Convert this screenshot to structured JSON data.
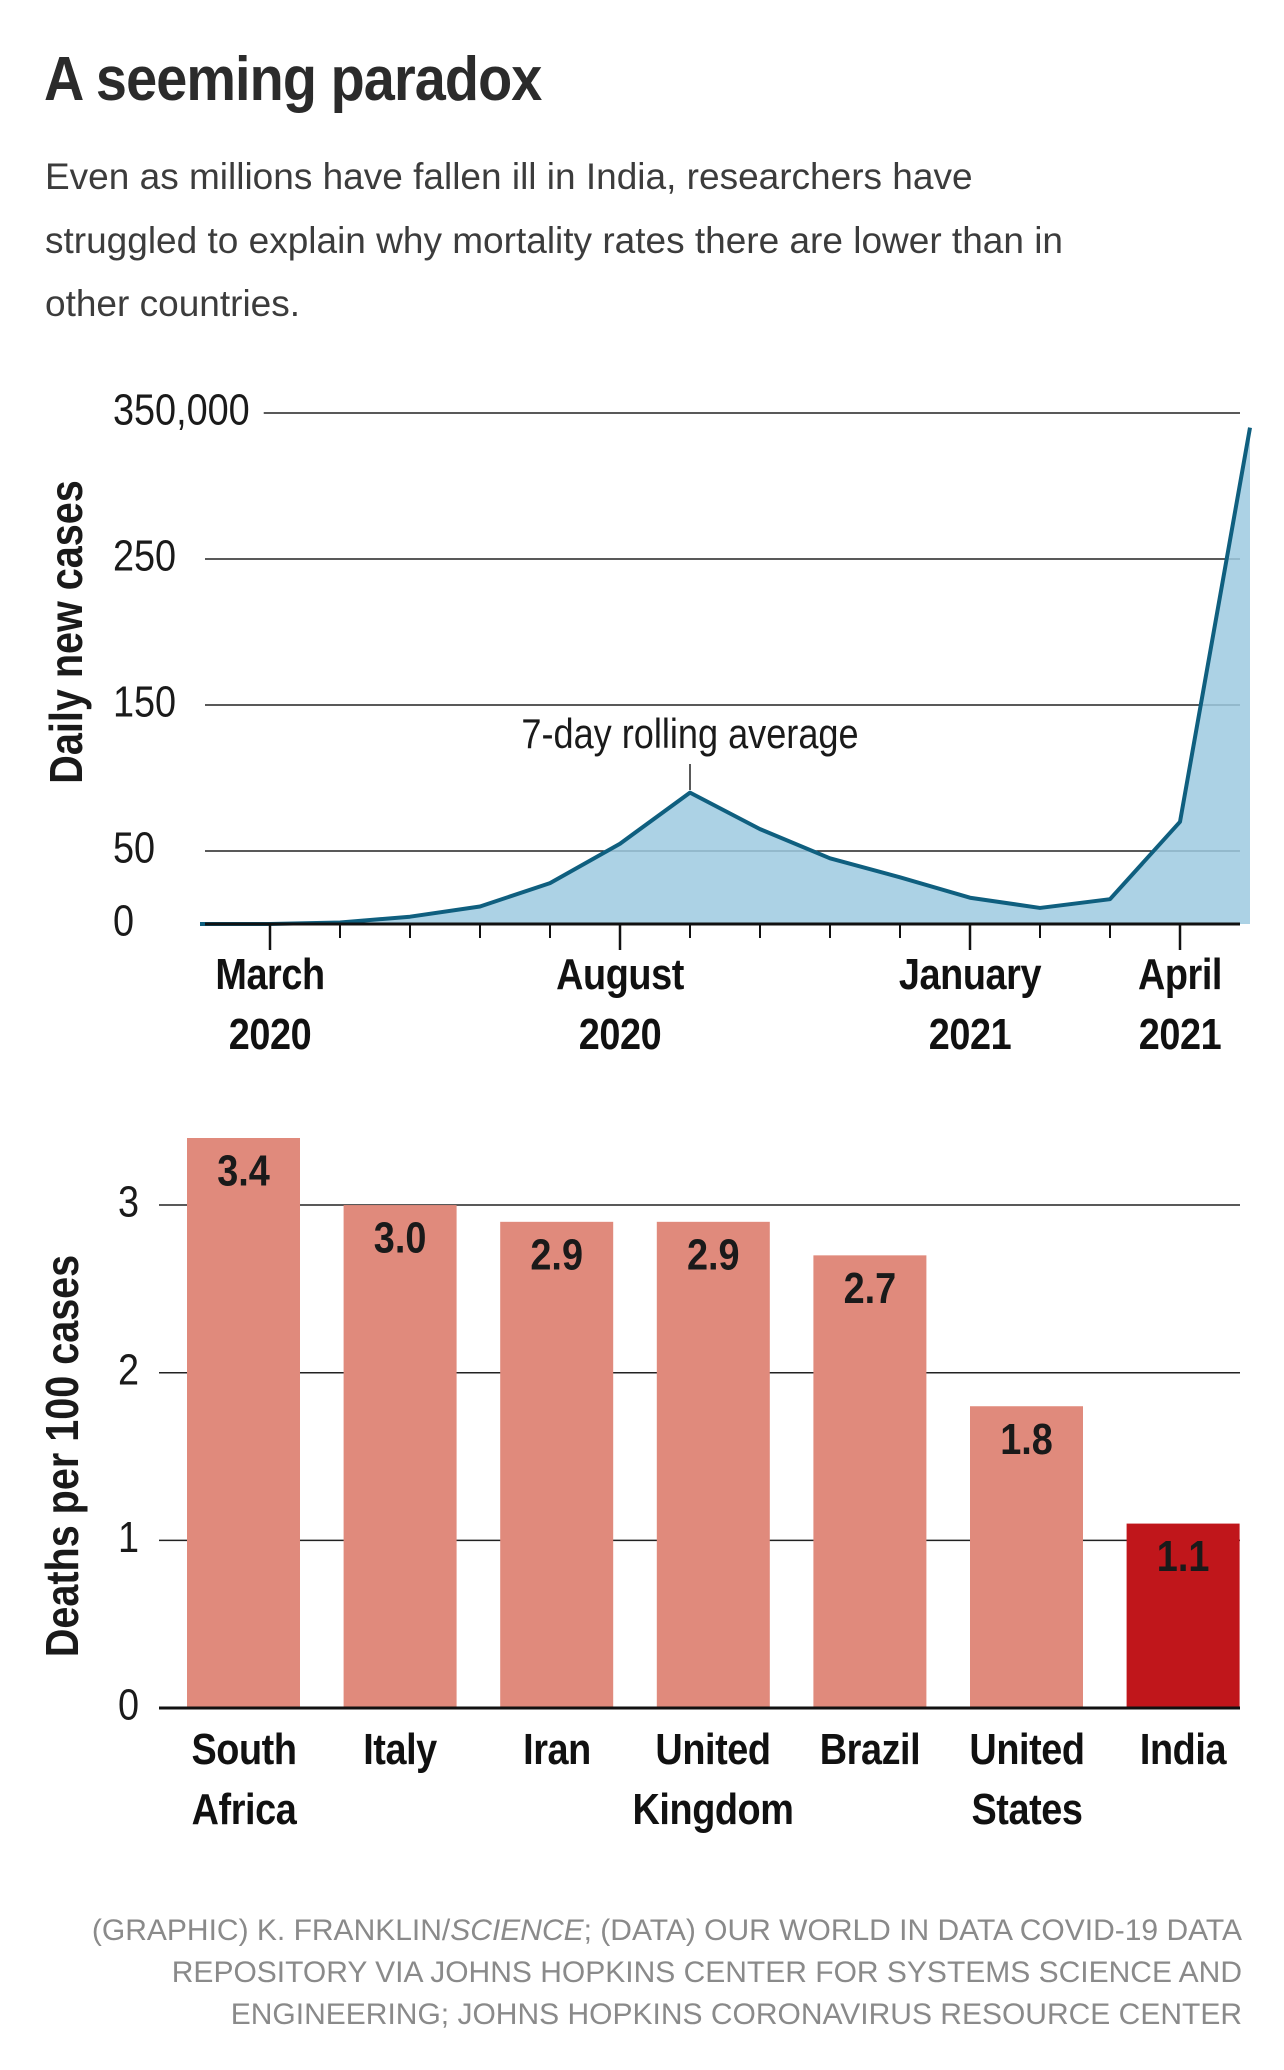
{
  "title": "A seeming paradox",
  "subtitle": [
    "Even as millions have fallen ill in India, researchers have",
    "struggled to explain why mortality rates there are lower than in",
    "other countries."
  ],
  "source": [
    "(GRAPHIC) K. FRANKLIN/",
    "SCIENCE",
    "; (DATA) OUR WORLD IN DATA COVID-19 DATA REPOSITORY VIA JOHNS HOPKINS CENTER FOR SYSTEMS SCIENCE AND ENGINEERING; JOHNS HOPKINS CORONAVIRUS RESOURCE CENTER"
  ],
  "chart_data": [
    {
      "type": "line",
      "y_label": "Daily new cases",
      "x": [
        "2020-02",
        "2020-03",
        "2020-04",
        "2020-05",
        "2020-06",
        "2020-07",
        "2020-08",
        "2020-09",
        "2020-10",
        "2020-11",
        "2020-12",
        "2021-01",
        "2021-02",
        "2021-03",
        "2021-04",
        "2021-05"
      ],
      "series": [
        {
          "color": "#0f5f7f",
          "fill": "#9ecae1",
          "values": [
            0,
            0,
            1000,
            5000,
            12000,
            28000,
            55000,
            90000,
            65000,
            45000,
            32000,
            18000,
            11000,
            17000,
            70000,
            340000
          ]
        }
      ],
      "annotation": {
        "text": "7-day rolling average",
        "x": "2020-09"
      },
      "xlim": [
        "2020-02",
        "2021-05"
      ],
      "xticks": [
        {
          "value": "2020-03",
          "label": "March\n2020"
        },
        {
          "value": "2020-08",
          "label": "August\n2020"
        },
        {
          "value": "2021-01",
          "label": "January\n2021"
        },
        {
          "value": "2021-04",
          "label": "April\n2021"
        }
      ],
      "minor_xticks": [
        "2020-04",
        "2020-05",
        "2020-06",
        "2020-07",
        "2020-09",
        "2020-10",
        "2020-11",
        "2020-12",
        "2021-02",
        "2021-03"
      ],
      "ylim": [
        0,
        350000
      ],
      "yticks": [
        0,
        {
          "value": 50000,
          "label": "50"
        },
        {
          "value": 150000,
          "label": "150"
        },
        {
          "value": 250000,
          "label": "250"
        },
        {
          "value": 350000,
          "label": "350,000"
        }
      ],
      "grid": true
    },
    {
      "type": "bar",
      "y_label": "Deaths per 100 cases",
      "categories": [
        "South\nAfrica",
        "Italy",
        "Iran",
        "United\nKingdom",
        "Brazil",
        "United\nStates",
        "India"
      ],
      "values": [
        3.4,
        3.0,
        2.9,
        2.9,
        2.7,
        1.8,
        1.1
      ],
      "value_labels": [
        "3.4",
        "3.0",
        "2.9",
        "2.9",
        "2.7",
        "1.8",
        "1.1"
      ],
      "colors": [
        "#e08a7c",
        "#e08a7c",
        "#e08a7c",
        "#e08a7c",
        "#e08a7c",
        "#e08a7c",
        "#c0161b"
      ],
      "ylim": [
        0,
        3.4
      ],
      "yticks": [
        0,
        1,
        2,
        3
      ],
      "grid": true
    }
  ]
}
